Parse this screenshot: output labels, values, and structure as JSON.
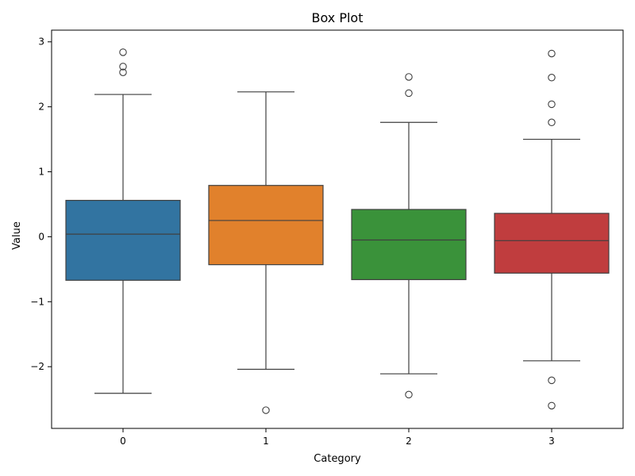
{
  "chart_data": {
    "type": "box",
    "title": "Box Plot",
    "xlabel": "Category",
    "ylabel": "Value",
    "ylim": [
      -2.95,
      3.18
    ],
    "yticks": [
      -2,
      -1,
      0,
      1,
      2,
      3
    ],
    "ytick_labels": [
      "−2",
      "−1",
      "0",
      "1",
      "2",
      "3"
    ],
    "categories": [
      "0",
      "1",
      "2",
      "3"
    ],
    "colors": [
      "#3274a1",
      "#e1812c",
      "#3a923a",
      "#c03d3e"
    ],
    "line_color": "#3f3f3f",
    "boxes": [
      {
        "category": "0",
        "q1": -0.67,
        "median": 0.04,
        "q3": 0.56,
        "whisker_low": -2.41,
        "whisker_high": 2.19,
        "outliers": [
          2.84,
          2.62,
          2.53
        ]
      },
      {
        "category": "1",
        "q1": -0.43,
        "median": 0.25,
        "q3": 0.79,
        "whisker_low": -2.04,
        "whisker_high": 2.23,
        "outliers": [
          -2.67
        ]
      },
      {
        "category": "2",
        "q1": -0.66,
        "median": -0.05,
        "q3": 0.42,
        "whisker_low": -2.11,
        "whisker_high": 1.76,
        "outliers": [
          2.46,
          2.21,
          -2.43
        ]
      },
      {
        "category": "3",
        "q1": -0.56,
        "median": -0.06,
        "q3": 0.36,
        "whisker_low": -1.91,
        "whisker_high": 1.5,
        "outliers": [
          2.82,
          2.45,
          2.04,
          1.76,
          -2.21,
          -2.6
        ]
      }
    ]
  }
}
